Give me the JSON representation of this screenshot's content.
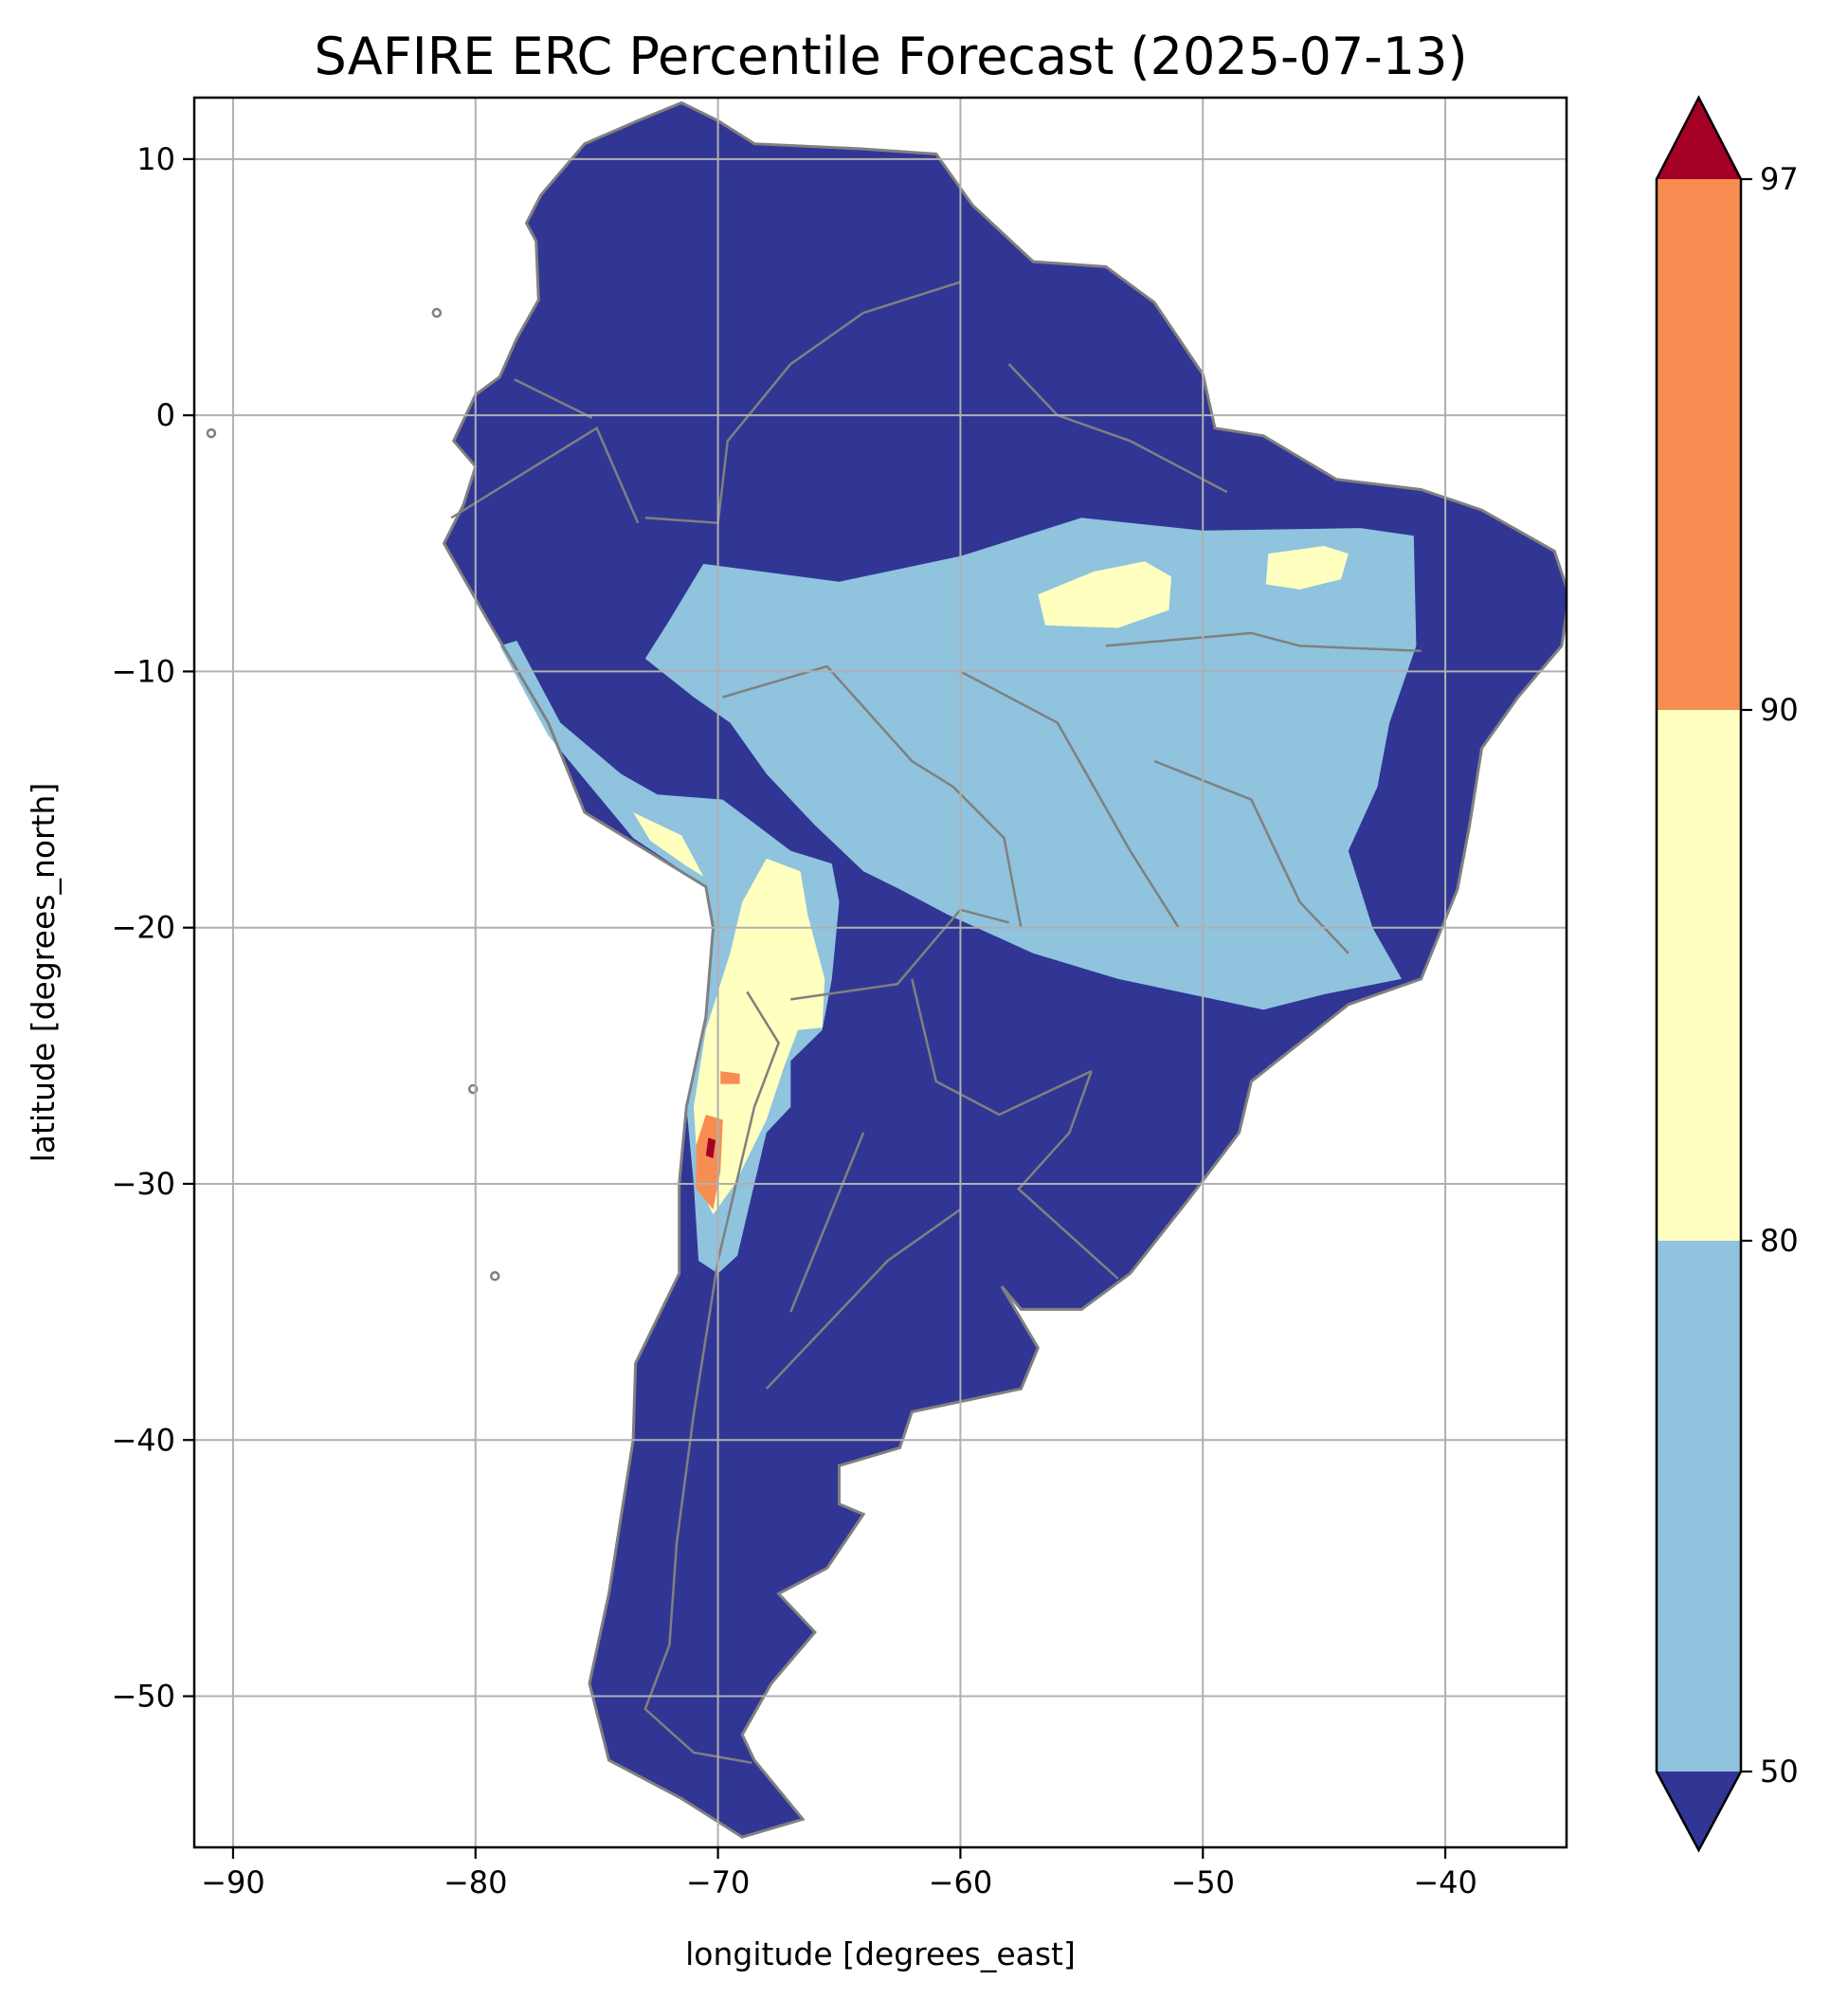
{
  "title": "SAFIRE ERC Percentile Forecast (2025-07-13)",
  "xlabel": "longitude [degrees_east]",
  "ylabel": "latitude [degrees_north]",
  "colors": {
    "ocean": "#ffffff",
    "land_below_50": "#313695",
    "band_50_80": "#8fc3de",
    "band_80_90": "#ffffbf",
    "band_90_97": "#f88d52",
    "above_97": "#a50026",
    "borders": "#808080",
    "grid": "#b0b0b0"
  },
  "chart_data": {
    "type": "heatmap",
    "title": "SAFIRE ERC Percentile Forecast (2025-07-13)",
    "xlabel": "longitude [degrees_east]",
    "ylabel": "latitude [degrees_north]",
    "xlim": [
      -91.6,
      -35.0
    ],
    "ylim": [
      -55.9,
      12.4
    ],
    "x_ticks": [
      -90,
      -80,
      -70,
      -60,
      -50,
      -40
    ],
    "y_ticks": [
      10,
      0,
      -10,
      -20,
      -30,
      -40,
      -50
    ],
    "x_tick_labels": [
      "−90",
      "−80",
      "−70",
      "−60",
      "−50",
      "−40"
    ],
    "y_tick_labels": [
      "10",
      "0",
      "−10",
      "−20",
      "−30",
      "−40",
      "−50"
    ],
    "grid": true,
    "colorbar": {
      "position": "right",
      "extend": "both",
      "levels": [
        50,
        80,
        90,
        97
      ],
      "tick_labels": [
        "50",
        "80",
        "90",
        "97"
      ]
    },
    "continent_outline": [
      [
        -77.3,
        8.6
      ],
      [
        -75.5,
        10.6
      ],
      [
        -73.3,
        11.5
      ],
      [
        -71.5,
        12.2
      ],
      [
        -70.0,
        11.5
      ],
      [
        -68.5,
        10.6
      ],
      [
        -64.0,
        10.4
      ],
      [
        -61.0,
        10.2
      ],
      [
        -59.5,
        8.2
      ],
      [
        -57.0,
        6.0
      ],
      [
        -54.0,
        5.8
      ],
      [
        -52.0,
        4.4
      ],
      [
        -50.0,
        1.6
      ],
      [
        -49.5,
        -0.5
      ],
      [
        -47.5,
        -0.8
      ],
      [
        -44.5,
        -2.5
      ],
      [
        -41.0,
        -2.9
      ],
      [
        -38.5,
        -3.7
      ],
      [
        -35.5,
        -5.3
      ],
      [
        -34.9,
        -7.0
      ],
      [
        -35.2,
        -9.0
      ],
      [
        -37.0,
        -11.0
      ],
      [
        -38.5,
        -13.0
      ],
      [
        -39.0,
        -16.0
      ],
      [
        -39.5,
        -18.5
      ],
      [
        -41.0,
        -22.0
      ],
      [
        -44.0,
        -23.0
      ],
      [
        -48.0,
        -26.0
      ],
      [
        -48.5,
        -28.0
      ],
      [
        -50.5,
        -30.5
      ],
      [
        -53.0,
        -33.5
      ],
      [
        -55.0,
        -34.9
      ],
      [
        -57.5,
        -34.9
      ],
      [
        -58.3,
        -34.0
      ],
      [
        -56.8,
        -36.4
      ],
      [
        -57.5,
        -38.0
      ],
      [
        -62.0,
        -38.9
      ],
      [
        -62.5,
        -40.3
      ],
      [
        -65.0,
        -41.0
      ],
      [
        -65.0,
        -42.5
      ],
      [
        -64.0,
        -42.9
      ],
      [
        -65.5,
        -45.0
      ],
      [
        -67.5,
        -46.0
      ],
      [
        -66.0,
        -47.5
      ],
      [
        -67.8,
        -49.5
      ],
      [
        -69.0,
        -51.5
      ],
      [
        -68.5,
        -52.5
      ],
      [
        -66.5,
        -54.8
      ],
      [
        -69.0,
        -55.5
      ],
      [
        -71.5,
        -54.0
      ],
      [
        -74.5,
        -52.5
      ],
      [
        -75.3,
        -49.5
      ],
      [
        -74.5,
        -46.0
      ],
      [
        -74.0,
        -43.0
      ],
      [
        -73.5,
        -40.0
      ],
      [
        -73.4,
        -37.0
      ],
      [
        -71.6,
        -33.5
      ],
      [
        -71.6,
        -30.0
      ],
      [
        -71.3,
        -27.0
      ],
      [
        -70.5,
        -23.5
      ],
      [
        -70.2,
        -20.0
      ],
      [
        -70.5,
        -18.4
      ],
      [
        -75.5,
        -15.5
      ],
      [
        -77.0,
        -12.0
      ],
      [
        -79.5,
        -8.0
      ],
      [
        -81.3,
        -5.0
      ],
      [
        -80.5,
        -3.5
      ],
      [
        -80.0,
        -2.0
      ],
      [
        -80.9,
        -1.0
      ],
      [
        -80.0,
        0.8
      ],
      [
        -79.0,
        1.5
      ],
      [
        -78.3,
        3.0
      ],
      [
        -77.4,
        4.5
      ],
      [
        -77.5,
        6.8
      ],
      [
        -77.9,
        7.5
      ]
    ],
    "regions": [
      {
        "category": "50-80",
        "polygon": [
          [
            -70.6,
            -5.8
          ],
          [
            -65.0,
            -6.5
          ],
          [
            -60.0,
            -5.5
          ],
          [
            -55.0,
            -4.0
          ],
          [
            -50.0,
            -4.5
          ],
          [
            -43.5,
            -4.4
          ],
          [
            -41.3,
            -4.7
          ],
          [
            -41.2,
            -9.0
          ],
          [
            -42.3,
            -12.0
          ],
          [
            -42.8,
            -14.5
          ],
          [
            -44.0,
            -17.0
          ],
          [
            -43.0,
            -20.0
          ],
          [
            -41.8,
            -22.0
          ],
          [
            -45.0,
            -22.6
          ],
          [
            -47.5,
            -23.2
          ],
          [
            -50.0,
            -22.7
          ],
          [
            -53.5,
            -22.0
          ],
          [
            -57.0,
            -21.0
          ],
          [
            -60.5,
            -19.5
          ],
          [
            -62.5,
            -18.5
          ],
          [
            -64.0,
            -17.8
          ],
          [
            -66.0,
            -16.0
          ],
          [
            -68.0,
            -14.0
          ],
          [
            -69.5,
            -12.0
          ],
          [
            -71.0,
            -11.0
          ],
          [
            -73.0,
            -9.5
          ],
          [
            -72.0,
            -8.0
          ]
        ]
      },
      {
        "category": "50-80",
        "polygon": [
          [
            -72.5,
            -14.8
          ],
          [
            -69.8,
            -15.0
          ],
          [
            -67.0,
            -17.0
          ],
          [
            -65.3,
            -17.5
          ],
          [
            -65.0,
            -19.0
          ],
          [
            -65.3,
            -22.0
          ],
          [
            -65.7,
            -24.0
          ],
          [
            -67.0,
            -25.2
          ],
          [
            -67.0,
            -27.0
          ],
          [
            -68.0,
            -28.0
          ],
          [
            -68.5,
            -30.0
          ],
          [
            -69.2,
            -32.8
          ],
          [
            -70.0,
            -33.5
          ],
          [
            -70.8,
            -33.0
          ],
          [
            -71.0,
            -30.0
          ],
          [
            -71.3,
            -27.0
          ],
          [
            -70.5,
            -23.5
          ],
          [
            -70.2,
            -20.0
          ],
          [
            -70.5,
            -18.4
          ],
          [
            -73.5,
            -16.5
          ],
          [
            -77.0,
            -12.5
          ],
          [
            -79.0,
            -9.0
          ],
          [
            -78.3,
            -8.8
          ],
          [
            -76.5,
            -12.0
          ],
          [
            -74.0,
            -14.0
          ]
        ]
      },
      {
        "category": "80-90",
        "polygon": [
          [
            -56.8,
            -7.0
          ],
          [
            -54.5,
            -6.1
          ],
          [
            -52.4,
            -5.7
          ],
          [
            -51.3,
            -6.3
          ],
          [
            -51.4,
            -7.6
          ],
          [
            -53.5,
            -8.3
          ],
          [
            -56.5,
            -8.2
          ]
        ]
      },
      {
        "category": "80-90",
        "polygon": [
          [
            -47.3,
            -5.4
          ],
          [
            -45.0,
            -5.1
          ],
          [
            -44.0,
            -5.4
          ],
          [
            -44.3,
            -6.4
          ],
          [
            -46.0,
            -6.8
          ],
          [
            -47.4,
            -6.6
          ]
        ]
      },
      {
        "category": "80-90",
        "polygon": [
          [
            -68.0,
            -17.3
          ],
          [
            -66.6,
            -17.8
          ],
          [
            -66.3,
            -19.5
          ],
          [
            -65.6,
            -22.0
          ],
          [
            -65.7,
            -23.9
          ],
          [
            -66.7,
            -24.0
          ],
          [
            -67.3,
            -25.5
          ],
          [
            -68.0,
            -27.5
          ],
          [
            -69.3,
            -30.0
          ],
          [
            -70.2,
            -31.2
          ],
          [
            -70.8,
            -30.0
          ],
          [
            -71.0,
            -27.0
          ],
          [
            -70.5,
            -24.0
          ],
          [
            -69.5,
            -21.0
          ],
          [
            -69.0,
            -19.0
          ]
        ]
      },
      {
        "category": "80-90",
        "polygon": [
          [
            -73.5,
            -15.5
          ],
          [
            -71.5,
            -16.4
          ],
          [
            -70.6,
            -18.0
          ],
          [
            -71.3,
            -17.6
          ],
          [
            -72.8,
            -16.6
          ]
        ]
      },
      {
        "category": "90-97",
        "polygon": [
          [
            -70.5,
            -27.3
          ],
          [
            -69.8,
            -27.5
          ],
          [
            -69.9,
            -29.5
          ],
          [
            -70.2,
            -31.0
          ],
          [
            -70.9,
            -30.2
          ],
          [
            -70.9,
            -28.5
          ]
        ]
      },
      {
        "category": "90-97",
        "polygon": [
          [
            -69.9,
            -25.6
          ],
          [
            -69.1,
            -25.7
          ],
          [
            -69.1,
            -26.1
          ],
          [
            -69.9,
            -26.1
          ]
        ]
      },
      {
        "category": "above-97",
        "polygon": [
          [
            -70.4,
            -28.2
          ],
          [
            -70.1,
            -28.3
          ],
          [
            -70.2,
            -29.0
          ],
          [
            -70.5,
            -28.9
          ]
        ]
      }
    ],
    "islands": [
      {
        "name": "Galapagos",
        "center": [
          -90.9,
          -0.7
        ]
      },
      {
        "name": "Malpelo",
        "center": [
          -81.6,
          4.0
        ]
      },
      {
        "name": "San Felix",
        "center": [
          -80.1,
          -26.3
        ]
      },
      {
        "name": "Juan Fernandez",
        "center": [
          -79.2,
          -33.6
        ]
      }
    ]
  }
}
